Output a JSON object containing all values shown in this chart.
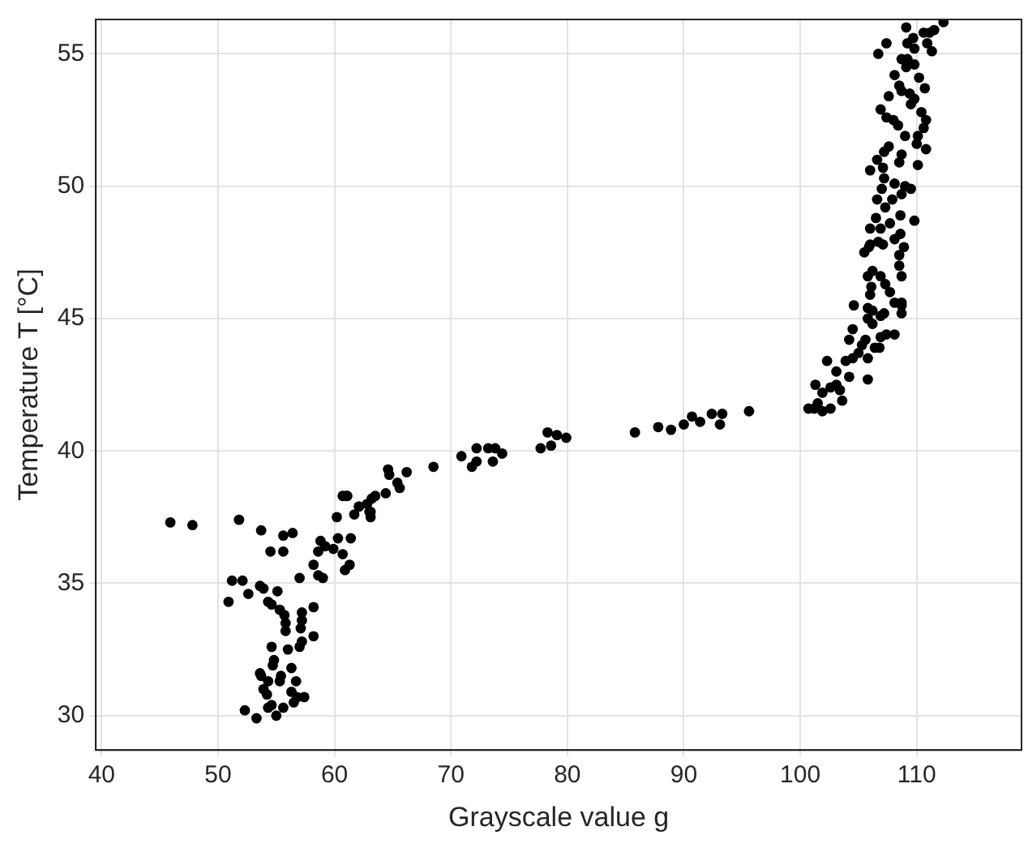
{
  "chart_data": {
    "type": "scatter",
    "xlabel": "Grayscale value g",
    "ylabel": "Temperature T [°C]",
    "xlim": [
      39.5,
      119
    ],
    "ylim": [
      28.7,
      56.3
    ],
    "xticks": [
      40,
      50,
      60,
      70,
      80,
      90,
      100,
      110
    ],
    "yticks": [
      30,
      35,
      40,
      45,
      50,
      55
    ],
    "grid": true,
    "marker": "circle",
    "series": [
      {
        "color": "#000000",
        "x": [
          45.9,
          47.8,
          51.8,
          53.7,
          55.6,
          56.4,
          54.5,
          55.6,
          51.2,
          52.1,
          50.9,
          52.6,
          53.6,
          53.9,
          55.1,
          54.3,
          54.6,
          55.3,
          55.7,
          57.0,
          58.2,
          57.2,
          57.2,
          55.8,
          55.8,
          57.1,
          58.2,
          57.2,
          57.0,
          56.0,
          54.6,
          54.8,
          54.7,
          56.3,
          53.6,
          53.7,
          55.4,
          55.3,
          54.3,
          56.7,
          53.9,
          56.3,
          54.2,
          57.4,
          56.8,
          56.5,
          54.6,
          54.3,
          55.6,
          55.0,
          52.3,
          53.3,
          60.2,
          60.3,
          61.4,
          58.8,
          59.2,
          58.6,
          59.9,
          60.7,
          58.2,
          60.9,
          61.3,
          58.6,
          59.0,
          61.0,
          62.1,
          63.0,
          63.2,
          60.7,
          61.1,
          61.7,
          62.1,
          62.8,
          63.1,
          63.1,
          63.5,
          64.4,
          64.6,
          64.7,
          65.4,
          65.6,
          66.2,
          68.5,
          70.9,
          71.8,
          72.2,
          72.2,
          73.2,
          73.8,
          74.4,
          73.6,
          77.7,
          78.3,
          78.6,
          79.1,
          79.9,
          85.8,
          87.8,
          88.9,
          90.0,
          90.7,
          91.4,
          92.4,
          93.3,
          93.1,
          95.6,
          100.7,
          101.2,
          101.9,
          102.6,
          101.5,
          101.3,
          101.9,
          102.6,
          103.1,
          103.6,
          103.4,
          102.3,
          103.1,
          103.9,
          104.2,
          105.8,
          104.5,
          105.0,
          105.8,
          104.2,
          104.5,
          105.3,
          105.6,
          106.4,
          106.8,
          106.9,
          107.4,
          108.1,
          106.2,
          105.8,
          106.2,
          106.9,
          107.2,
          108.7,
          108.7,
          104.6,
          105.8,
          106.0,
          106.1,
          105.8,
          107.3,
          107.7,
          108.1,
          108.7,
          106.2,
          106.9,
          108.5,
          108.7,
          105.5,
          105.9,
          106.7,
          107.1,
          108.1,
          108.9,
          108.5,
          112.3,
          111.5,
          111.1,
          110.6,
          109.1,
          109.7,
          110.9,
          111.3,
          109.2,
          109.8,
          107.4,
          106.7,
          108.7,
          109.2,
          109.8,
          109.1,
          108.1,
          110.2,
          108.5,
          108.7,
          110.7,
          107.6,
          109.4,
          109.8,
          109.5,
          110.4,
          106.9,
          107.4,
          108.0,
          108.4,
          110.8,
          110.6,
          109.0,
          110.1,
          110.0,
          110.8,
          107.6,
          107.2,
          108.7,
          106.6,
          107.1,
          106.0,
          108.5,
          110.1,
          107.2,
          108.1,
          109.0,
          109.5,
          107.0,
          106.6,
          107.9,
          108.7,
          107.3,
          106.5,
          106.0,
          107.7,
          108.6,
          109.8,
          106.9,
          108.6,
          106.0
        ],
        "values": [
          37.3,
          37.2,
          37.4,
          37.0,
          36.8,
          36.9,
          36.2,
          36.2,
          35.1,
          35.1,
          34.3,
          34.6,
          34.9,
          34.8,
          34.7,
          34.3,
          34.2,
          34.0,
          33.8,
          35.2,
          34.1,
          33.9,
          33.6,
          33.5,
          33.2,
          33.3,
          33.0,
          32.8,
          32.6,
          32.5,
          32.6,
          32.1,
          31.9,
          31.8,
          31.6,
          31.5,
          31.5,
          31.3,
          31.3,
          31.3,
          31.0,
          30.9,
          30.8,
          30.7,
          30.7,
          30.5,
          30.4,
          30.3,
          30.3,
          30.0,
          30.2,
          29.9,
          37.5,
          36.7,
          36.7,
          36.6,
          36.4,
          36.2,
          36.3,
          36.1,
          35.7,
          35.5,
          35.7,
          35.3,
          35.2,
          38.3,
          37.9,
          37.7,
          38.2,
          38.3,
          38.3,
          37.6,
          37.9,
          38.0,
          37.7,
          37.5,
          38.3,
          38.4,
          39.3,
          39.1,
          38.8,
          38.6,
          39.2,
          39.4,
          39.8,
          39.4,
          39.6,
          40.1,
          40.1,
          40.1,
          39.9,
          39.6,
          40.1,
          40.7,
          40.2,
          40.6,
          40.5,
          40.7,
          40.9,
          40.8,
          41.0,
          41.3,
          41.1,
          41.4,
          41.4,
          41.0,
          41.5,
          41.6,
          41.6,
          41.5,
          41.6,
          41.8,
          42.5,
          42.2,
          42.4,
          42.5,
          41.9,
          42.3,
          43.4,
          43.0,
          43.4,
          42.8,
          42.7,
          43.5,
          43.7,
          43.5,
          44.2,
          44.6,
          44.0,
          44.2,
          43.9,
          43.9,
          44.3,
          44.4,
          44.4,
          44.8,
          45.0,
          45.3,
          45.1,
          45.2,
          45.2,
          45.5,
          45.5,
          45.4,
          45.9,
          46.2,
          46.6,
          46.3,
          46.0,
          45.6,
          45.6,
          46.8,
          46.6,
          47.0,
          46.6,
          47.5,
          47.7,
          47.9,
          47.8,
          48.0,
          47.7,
          47.4,
          56.2,
          55.9,
          55.8,
          55.8,
          56.0,
          55.6,
          55.4,
          55.1,
          55.4,
          55.2,
          55.4,
          55.0,
          54.8,
          54.8,
          54.6,
          54.5,
          54.2,
          54.1,
          53.8,
          53.6,
          53.7,
          53.4,
          53.5,
          53.3,
          53.1,
          52.8,
          52.9,
          52.6,
          52.5,
          52.3,
          52.5,
          52.2,
          51.9,
          51.9,
          51.6,
          51.4,
          51.5,
          51.3,
          51.2,
          51.0,
          50.7,
          50.6,
          50.9,
          50.8,
          50.3,
          50.1,
          50.0,
          49.9,
          49.9,
          49.5,
          49.5,
          49.7,
          49.2,
          48.8,
          48.4,
          48.6,
          48.9,
          48.7,
          48.4,
          48.2,
          47.8
        ]
      }
    ]
  }
}
